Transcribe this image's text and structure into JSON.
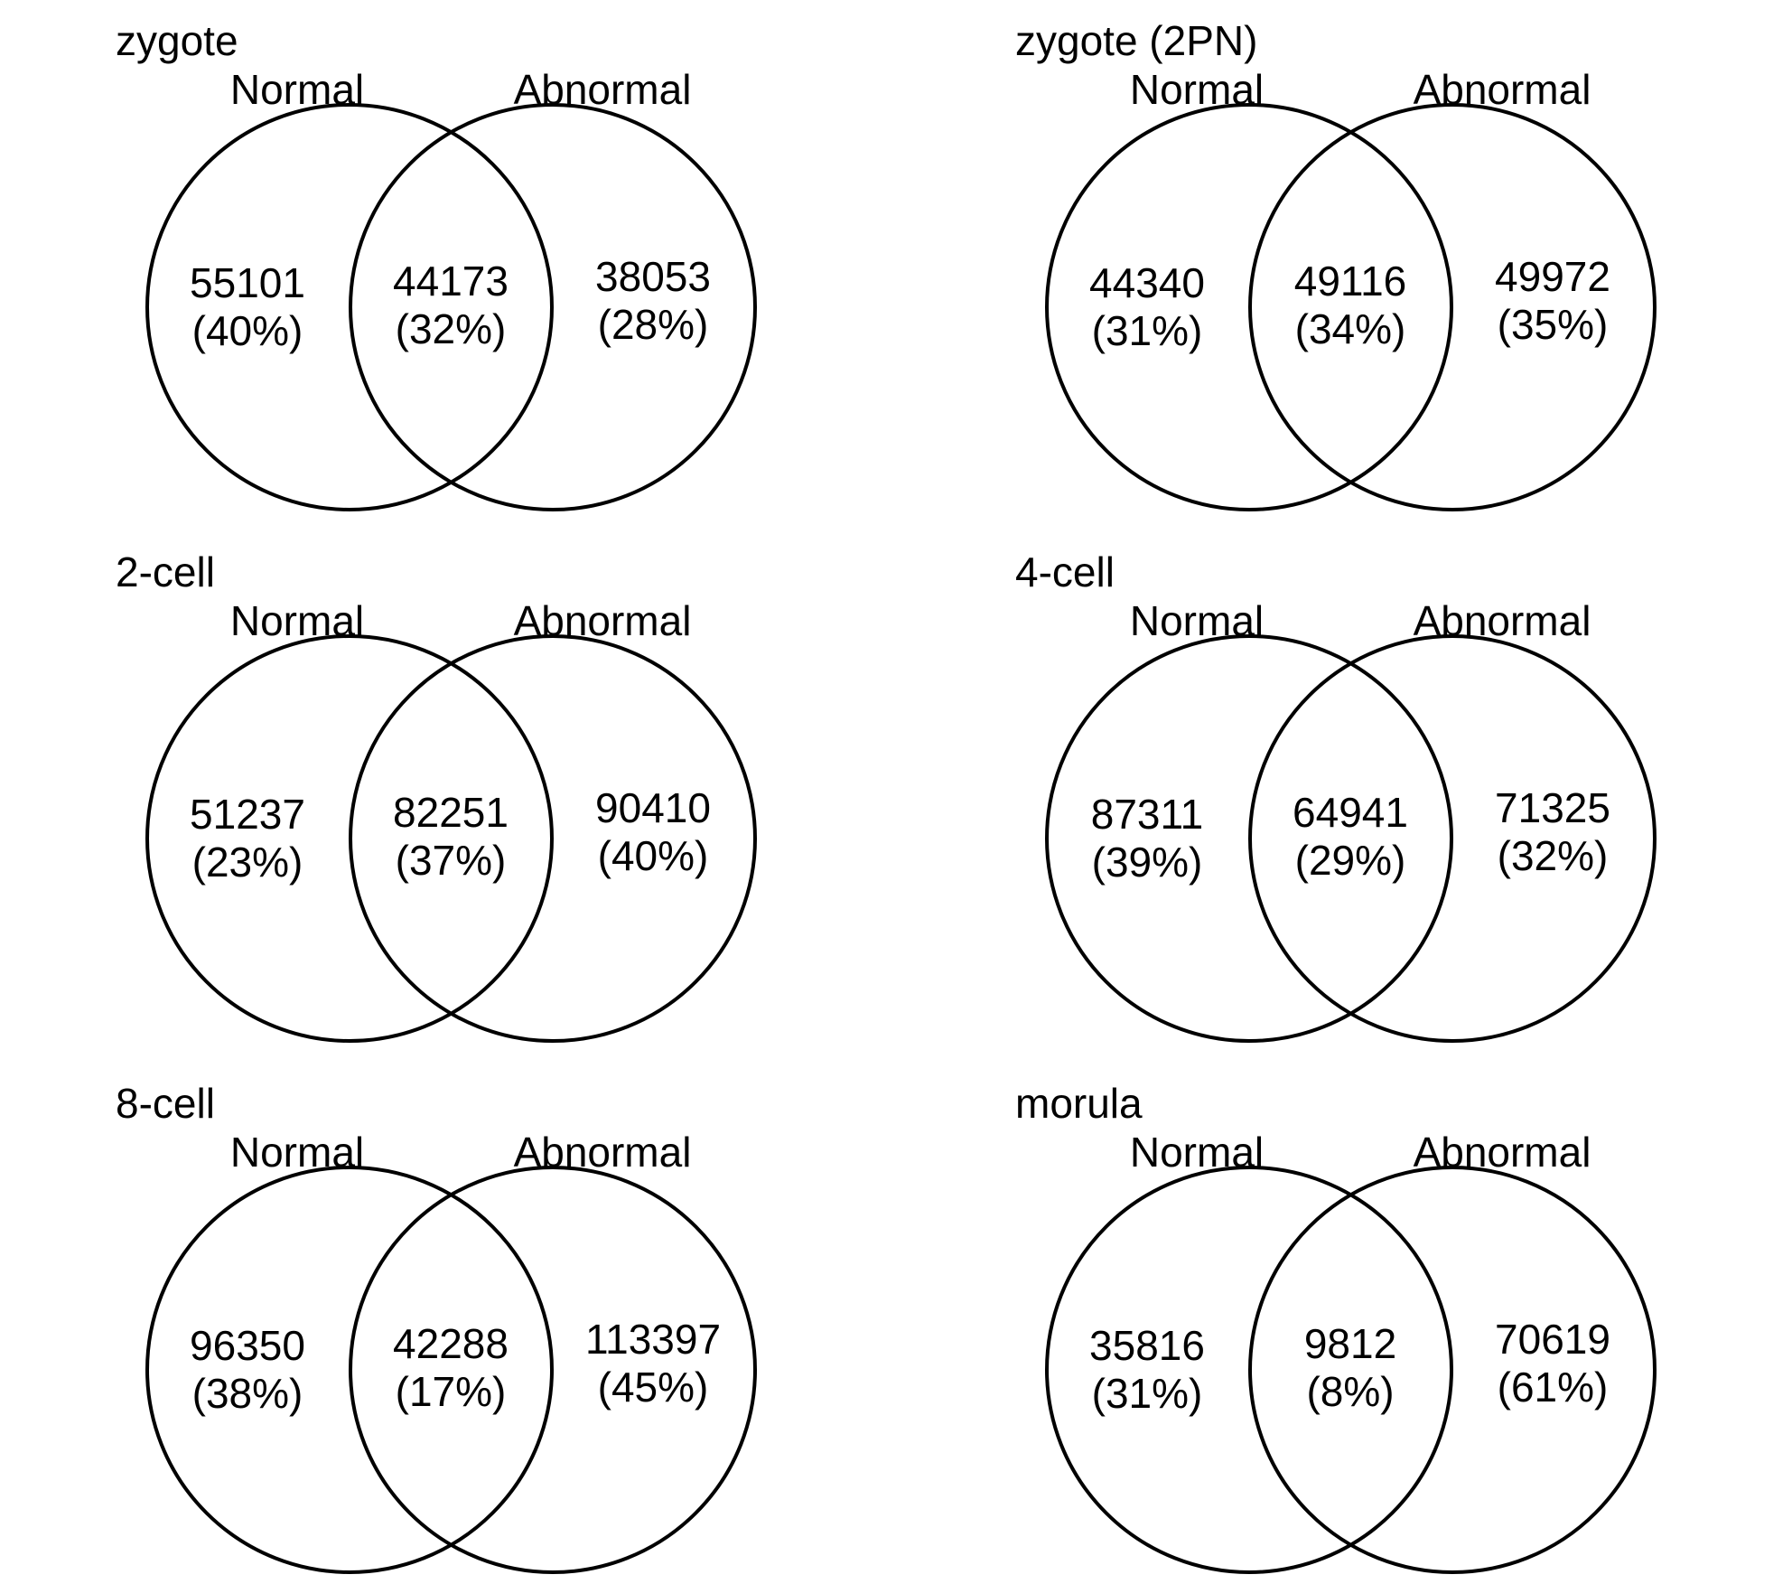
{
  "chart_data": [
    {
      "type": "venn",
      "title": "zygote",
      "sets": [
        "Normal",
        "Abnormal"
      ],
      "regions": [
        {
          "set": "Normal only",
          "count": "55101",
          "percent": "(40%)"
        },
        {
          "set": "Both",
          "count": "44173",
          "percent": "(32%)"
        },
        {
          "set": "Abnormal only",
          "count": "38053",
          "percent": "(28%)"
        }
      ]
    },
    {
      "type": "venn",
      "title": "zygote (2PN)",
      "sets": [
        "Normal",
        "Abnormal"
      ],
      "regions": [
        {
          "set": "Normal only",
          "count": "44340",
          "percent": "(31%)"
        },
        {
          "set": "Both",
          "count": "49116",
          "percent": "(34%)"
        },
        {
          "set": "Abnormal only",
          "count": "49972",
          "percent": "(35%)"
        }
      ]
    },
    {
      "type": "venn",
      "title": "2-cell",
      "sets": [
        "Normal",
        "Abnormal"
      ],
      "regions": [
        {
          "set": "Normal only",
          "count": "51237",
          "percent": "(23%)"
        },
        {
          "set": "Both",
          "count": "82251",
          "percent": "(37%)"
        },
        {
          "set": "Abnormal only",
          "count": "90410",
          "percent": "(40%)"
        }
      ]
    },
    {
      "type": "venn",
      "title": "4-cell",
      "sets": [
        "Normal",
        "Abnormal"
      ],
      "regions": [
        {
          "set": "Normal only",
          "count": "87311",
          "percent": "(39%)"
        },
        {
          "set": "Both",
          "count": "64941",
          "percent": "(29%)"
        },
        {
          "set": "Abnormal only",
          "count": "71325",
          "percent": "(32%)"
        }
      ]
    },
    {
      "type": "venn",
      "title": "8-cell",
      "sets": [
        "Normal",
        "Abnormal"
      ],
      "regions": [
        {
          "set": "Normal only",
          "count": "96350",
          "percent": "(38%)"
        },
        {
          "set": "Both",
          "count": "42288",
          "percent": "(17%)"
        },
        {
          "set": "Abnormal only",
          "count": "113397",
          "percent": "(45%)"
        }
      ]
    },
    {
      "type": "venn",
      "title": "morula",
      "sets": [
        "Normal",
        "Abnormal"
      ],
      "regions": [
        {
          "set": "Normal only",
          "count": "35816",
          "percent": "(31%)"
        },
        {
          "set": "Both",
          "count": "9812",
          "percent": "(8%)"
        },
        {
          "set": "Abnormal only",
          "count": "70619",
          "percent": "(61%)"
        }
      ]
    }
  ]
}
